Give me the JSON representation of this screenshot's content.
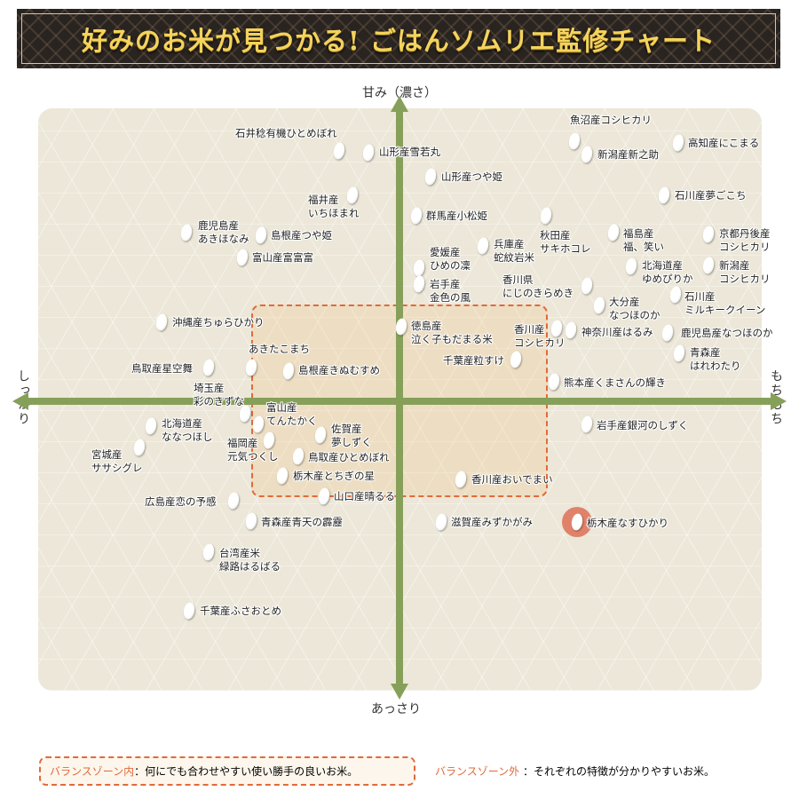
{
  "title": "好みのお米が見つかる! ごはんソムリエ監修チャート",
  "axes": {
    "top": "甘み（濃さ）",
    "bottom": "あっさり",
    "left": "しっかり",
    "right": "もちもち"
  },
  "colors": {
    "axis": "#86a05a",
    "zone": "#e06a3c",
    "highlight": "#e0826a"
  },
  "items": [
    {
      "lines": [
        "石井稔有機ひとめぼれ"
      ]
    },
    {
      "lines": [
        "山形産雪若丸"
      ]
    },
    {
      "lines": [
        "山形産つや姫"
      ]
    },
    {
      "lines": [
        "福井産",
        "いちほまれ"
      ]
    },
    {
      "lines": [
        "鹿児島産",
        "あきほなみ"
      ]
    },
    {
      "lines": [
        "島根産つや姫"
      ]
    },
    {
      "lines": [
        "富山産富富富"
      ]
    },
    {
      "lines": [
        "群馬産小松姫"
      ]
    },
    {
      "lines": [
        "兵庫産",
        "蛇紋岩米"
      ]
    },
    {
      "lines": [
        "愛媛産",
        "ひめの凜"
      ]
    },
    {
      "lines": [
        "岩手産",
        "金色の風"
      ]
    },
    {
      "lines": [
        "秋田産",
        "サキホコレ"
      ]
    },
    {
      "lines": [
        "香川県",
        "にじのきらめき"
      ]
    },
    {
      "lines": [
        "魚沼産コシヒカリ"
      ]
    },
    {
      "lines": [
        "新潟産新之助"
      ]
    },
    {
      "lines": [
        "高知産にこまる"
      ]
    },
    {
      "lines": [
        "石川産夢ごこち"
      ]
    },
    {
      "lines": [
        "福島産",
        "福、笑い"
      ]
    },
    {
      "lines": [
        "京都丹後産",
        "コシヒカリ"
      ]
    },
    {
      "lines": [
        "北海道産",
        "ゆめぴりか"
      ]
    },
    {
      "lines": [
        "新潟産",
        "コシヒカリ"
      ]
    },
    {
      "lines": [
        "大分産",
        "なつほのか"
      ]
    },
    {
      "lines": [
        "石川産",
        "ミルキークイーン"
      ]
    },
    {
      "lines": [
        "香川産",
        "コシヒカリ"
      ]
    },
    {
      "lines": [
        "神奈川産はるみ"
      ]
    },
    {
      "lines": [
        "鹿児島産なつほのか"
      ]
    },
    {
      "lines": [
        "青森産",
        "はれわたり"
      ]
    },
    {
      "lines": [
        "千葉産粒すけ"
      ]
    },
    {
      "lines": [
        "熊本産くまさんの輝き"
      ]
    },
    {
      "lines": [
        "徳島産",
        "泣く子もだまる米"
      ]
    },
    {
      "lines": [
        "沖縄産ちゅらひかり"
      ]
    },
    {
      "lines": [
        "あきたこまち"
      ]
    },
    {
      "lines": [
        "鳥取産星空舞"
      ]
    },
    {
      "lines": [
        "島根産きぬむすめ"
      ]
    },
    {
      "lines": [
        "埼玉産",
        "彩のきずな"
      ]
    },
    {
      "lines": [
        "北海道産",
        "ななつほし"
      ]
    },
    {
      "lines": [
        "宮城産",
        "ササシグレ"
      ]
    },
    {
      "lines": [
        "富山産",
        "てんたかく"
      ]
    },
    {
      "lines": [
        "福岡産",
        "元気つくし"
      ]
    },
    {
      "lines": [
        "佐賀産",
        "夢しずく"
      ]
    },
    {
      "lines": [
        "鳥取産ひとめぼれ"
      ]
    },
    {
      "lines": [
        "栃木産とちぎの星"
      ]
    },
    {
      "lines": [
        "山口産晴るる"
      ]
    },
    {
      "lines": [
        "香川産おいでまい"
      ]
    },
    {
      "lines": [
        "岩手産銀河のしずく"
      ]
    },
    {
      "lines": [
        "広島産恋の予感"
      ]
    },
    {
      "lines": [
        "青森産青天の霹靂"
      ]
    },
    {
      "lines": [
        "滋賀産みずかがみ"
      ]
    },
    {
      "lines": [
        "栃木産なすひかり"
      ],
      "highlighted": true
    },
    {
      "lines": [
        "台湾産米",
        "緑路はるばる"
      ]
    },
    {
      "lines": [
        "千葉産ふさおとめ"
      ]
    }
  ],
  "legend": {
    "inside_label": "バランスゾーン内",
    "inside_text": "：何にでも合わせやすい使い勝手の良いお米。",
    "outside_label": "バランスゾーン外",
    "outside_text": "：それぞれの特徴が分かりやすいお米。"
  }
}
